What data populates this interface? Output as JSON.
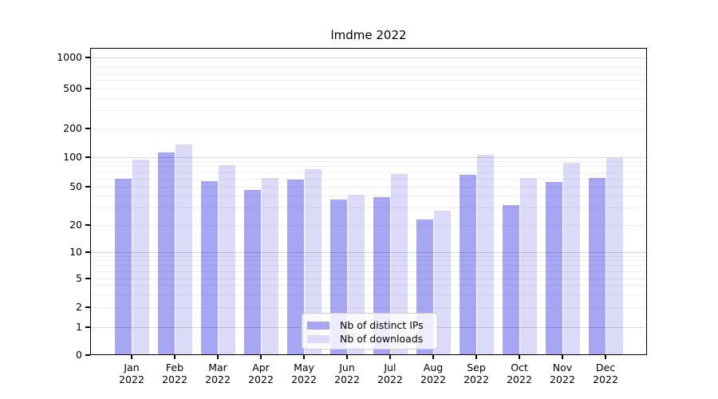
{
  "title": "lmdme 2022",
  "legend": {
    "items": [
      {
        "label": "Nb of distinct IPs",
        "color": "#a6a6f2"
      },
      {
        "label": "Nb of downloads",
        "color": "#dbdbf9"
      }
    ]
  },
  "y_axis": {
    "ticks": [
      {
        "label": "1000",
        "value": 1000
      },
      {
        "label": "500",
        "value": 500
      },
      {
        "label": "200",
        "value": 200
      },
      {
        "label": "100",
        "value": 100
      },
      {
        "label": "50",
        "value": 50
      },
      {
        "label": "20",
        "value": 20
      },
      {
        "label": "10",
        "value": 10
      },
      {
        "label": "5",
        "value": 5
      },
      {
        "label": "2",
        "value": 2
      },
      {
        "label": "1",
        "value": 1
      },
      {
        "label": "0",
        "value": 0
      }
    ]
  },
  "x_axis": {
    "ticks": [
      {
        "month": "Jan",
        "year": "2022"
      },
      {
        "month": "Feb",
        "year": "2022"
      },
      {
        "month": "Mar",
        "year": "2022"
      },
      {
        "month": "Apr",
        "year": "2022"
      },
      {
        "month": "May",
        "year": "2022"
      },
      {
        "month": "Jun",
        "year": "2022"
      },
      {
        "month": "Jul",
        "year": "2022"
      },
      {
        "month": "Aug",
        "year": "2022"
      },
      {
        "month": "Sep",
        "year": "2022"
      },
      {
        "month": "Oct",
        "year": "2022"
      },
      {
        "month": "Nov",
        "year": "2022"
      },
      {
        "month": "Dec",
        "year": "2022"
      }
    ]
  },
  "chart_data": {
    "type": "bar",
    "title": "lmdme 2022",
    "yscale": "symlog",
    "ylim": [
      0,
      1300
    ],
    "grid": true,
    "legend_position": "lower center",
    "categories": [
      "Jan 2022",
      "Feb 2022",
      "Mar 2022",
      "Apr 2022",
      "May 2022",
      "Jun 2022",
      "Jul 2022",
      "Aug 2022",
      "Sep 2022",
      "Oct 2022",
      "Nov 2022",
      "Dec 2022"
    ],
    "series": [
      {
        "name": "Nb of distinct IPs",
        "color": "#a6a6f2",
        "values": [
          60,
          112,
          57,
          46,
          59,
          37,
          39,
          23,
          66,
          32,
          56,
          62
        ]
      },
      {
        "name": "Nb of downloads",
        "color": "#dbdbf9",
        "values": [
          95,
          137,
          83,
          62,
          75,
          41,
          68,
          28,
          105,
          61,
          88,
          98
        ]
      }
    ],
    "yticks": [
      1000,
      500,
      200,
      100,
      50,
      20,
      10,
      5,
      2,
      1,
      0
    ]
  }
}
